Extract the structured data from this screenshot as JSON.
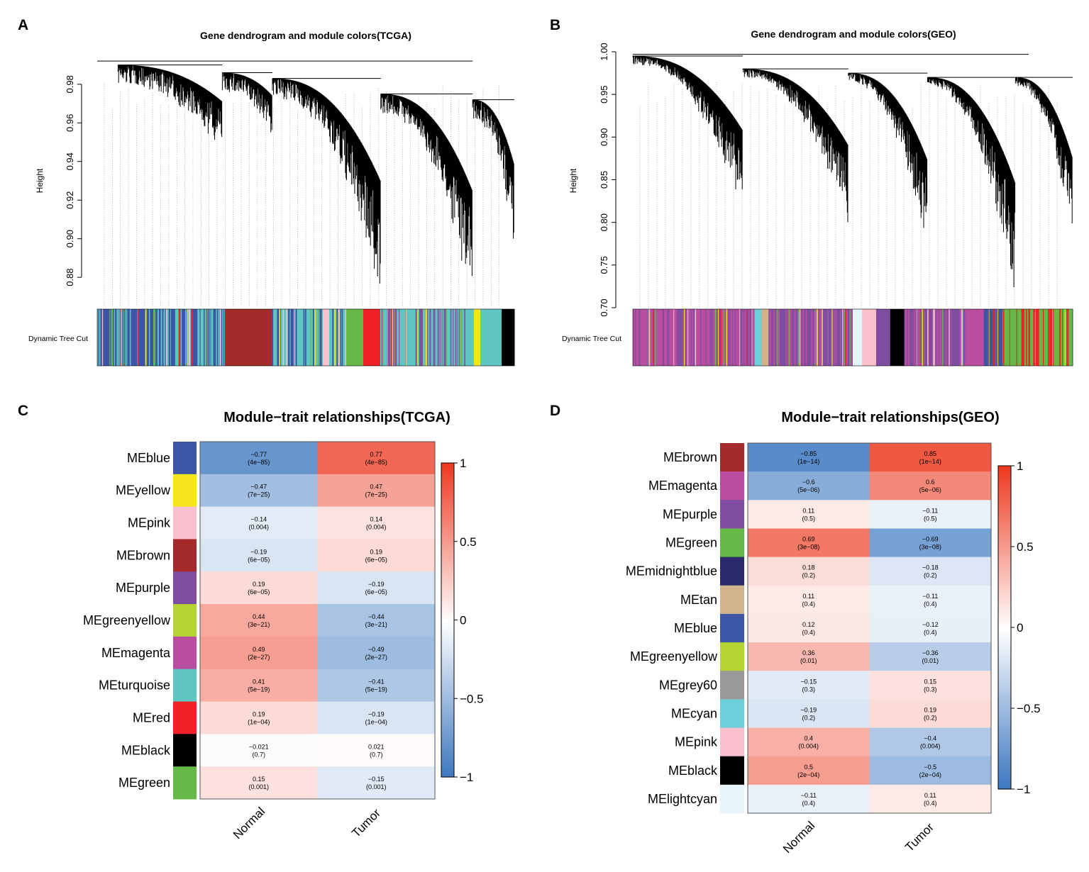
{
  "colors": {
    "blue": "#3c55a5",
    "yellow": "#f5e51c",
    "pink": "#f8c0cc",
    "brown": "#a52a2a",
    "purple": "#7f4ea0",
    "greenyellow": "#b5d333",
    "magenta": "#b94ea0",
    "turquoise": "#5fc6c2",
    "red": "#ee2227",
    "black": "#000000",
    "green": "#67b947",
    "midnightblue": "#2a2a6a",
    "tan": "#d2b48c",
    "grey60": "#999999",
    "cyan": "#6dcfdb",
    "lightcyan": "#e6f5f8",
    "neg": "#3a76c0",
    "pos": "#ee3a20"
  },
  "chart_data": [
    {
      "panel": "A",
      "type": "dendrogram",
      "title": "Gene dendrogram and module colors(TCGA)",
      "ylabel": "Height",
      "ylim": [
        0.865,
        0.995
      ],
      "yticks": [
        "0.88",
        "0.90",
        "0.92",
        "0.94",
        "0.96",
        "0.98"
      ],
      "ytick_values": [
        0.88,
        0.9,
        0.92,
        0.94,
        0.96,
        0.98
      ],
      "colorbar_label": "Dynamic Tree Cut",
      "colorbar_blocks": [
        [
          "blue",
          30,
          "turquoise"
        ],
        [
          "brown",
          11,
          null
        ],
        [
          "turquoise",
          12,
          "blue"
        ],
        [
          "pink",
          1.5,
          null
        ],
        [
          "turquoise",
          4,
          "blue"
        ],
        [
          "green",
          4,
          null
        ],
        [
          "red",
          4,
          null
        ],
        [
          "turquoise",
          20,
          "purple"
        ],
        [
          "turquoise",
          2,
          null
        ],
        [
          "yellow",
          1.5,
          null
        ],
        [
          "turquoise",
          5,
          null
        ],
        [
          "black",
          3,
          null
        ]
      ]
    },
    {
      "panel": "B",
      "type": "dendrogram",
      "title": "Gene dendrogram and module colors(GEO)",
      "ylabel": "Height",
      "ylim": [
        0.7,
        1.0
      ],
      "yticks": [
        "0.70",
        "0.75",
        "0.80",
        "0.85",
        "0.90",
        "0.95",
        "1.00"
      ],
      "ytick_values": [
        0.7,
        0.75,
        0.8,
        0.85,
        0.9,
        0.95,
        1.0
      ],
      "colorbar_label": "Dynamic Tree Cut",
      "colorbar_blocks": [
        [
          "magenta",
          26,
          "purple"
        ],
        [
          "cyan",
          1.5,
          null
        ],
        [
          "tan",
          1.5,
          null
        ],
        [
          "purple",
          18,
          "magenta"
        ],
        [
          "lightcyan",
          2,
          null
        ],
        [
          "pink",
          3,
          null
        ],
        [
          "purple",
          3,
          null
        ],
        [
          "black",
          3,
          null
        ],
        [
          "purple",
          13,
          "magenta"
        ],
        [
          "magenta",
          4,
          null
        ],
        [
          "blue",
          4,
          "purple"
        ],
        [
          "green",
          12,
          "red"
        ],
        [
          "green",
          3,
          "red"
        ]
      ]
    },
    {
      "panel": "C",
      "type": "heatmap",
      "title": "Module−trait relationships(TCGA)",
      "rows": [
        "MEblue",
        "MEyellow",
        "MEpink",
        "MEbrown",
        "MEpurple",
        "MEgreenyellow",
        "MEmagenta",
        "MEturquoise",
        "MEred",
        "MEblack",
        "MEgreen"
      ],
      "row_colors": [
        "blue",
        "yellow",
        "pink",
        "brown",
        "purple",
        "greenyellow",
        "magenta",
        "turquoise",
        "red",
        "black",
        "green"
      ],
      "columns": [
        "Normal",
        "Tumor"
      ],
      "values": [
        [
          -0.77,
          0.77
        ],
        [
          -0.47,
          0.47
        ],
        [
          -0.14,
          0.14
        ],
        [
          -0.19,
          0.19
        ],
        [
          0.19,
          -0.19
        ],
        [
          0.44,
          -0.44
        ],
        [
          0.49,
          -0.49
        ],
        [
          0.41,
          -0.41
        ],
        [
          0.19,
          -0.19
        ],
        [
          -0.021,
          0.021
        ],
        [
          0.15,
          -0.15
        ]
      ],
      "labels": [
        [
          "−0.77",
          "0.77"
        ],
        [
          "−0.47",
          "0.47"
        ],
        [
          "−0.14",
          "0.14"
        ],
        [
          "−0.19",
          "0.19"
        ],
        [
          "0.19",
          "−0.19"
        ],
        [
          "0.44",
          "−0.44"
        ],
        [
          "0.49",
          "−0.49"
        ],
        [
          "0.41",
          "−0.41"
        ],
        [
          "0.19",
          "−0.19"
        ],
        [
          "−0.021",
          "0.021"
        ],
        [
          "0.15",
          "−0.15"
        ]
      ],
      "pvalues": [
        "(4e−85)",
        "(7e−25)",
        "(0.004)",
        "(6e−05)",
        "(6e−05)",
        "(3e−21)",
        "(2e−27)",
        "(5e−19)",
        "(1e−04)",
        "(0.7)",
        "(0.001)"
      ],
      "legend_ticks": [
        "1",
        "0.5",
        "0",
        "−0.5",
        "−1"
      ],
      "zlim": [
        -1,
        1
      ]
    },
    {
      "panel": "D",
      "type": "heatmap",
      "title": "Module−trait relationships(GEO)",
      "rows": [
        "MEbrown",
        "MEmagenta",
        "MEpurple",
        "MEgreen",
        "MEmidnightblue",
        "MEtan",
        "MEblue",
        "MEgreenyellow",
        "MEgrey60",
        "MEcyan",
        "MEpink",
        "MEblack",
        "MElightcyan"
      ],
      "row_colors": [
        "brown",
        "magenta",
        "purple",
        "green",
        "midnightblue",
        "tan",
        "blue",
        "greenyellow",
        "grey60",
        "cyan",
        "pink",
        "black",
        "lightcyan"
      ],
      "columns": [
        "Normal",
        "Tumor"
      ],
      "values": [
        [
          -0.85,
          0.85
        ],
        [
          -0.6,
          0.6
        ],
        [
          0.11,
          -0.11
        ],
        [
          0.69,
          -0.69
        ],
        [
          0.18,
          -0.18
        ],
        [
          0.11,
          -0.11
        ],
        [
          0.12,
          -0.12
        ],
        [
          0.36,
          -0.36
        ],
        [
          -0.15,
          0.15
        ],
        [
          -0.19,
          0.19
        ],
        [
          0.4,
          -0.4
        ],
        [
          0.5,
          -0.5
        ],
        [
          -0.11,
          0.11
        ]
      ],
      "labels": [
        [
          "−0.85",
          "0.85"
        ],
        [
          "−0.6",
          "0.6"
        ],
        [
          "0.11",
          "−0.11"
        ],
        [
          "0.69",
          "−0.69"
        ],
        [
          "0.18",
          "−0.18"
        ],
        [
          "0.11",
          "−0.11"
        ],
        [
          "0.12",
          "−0.12"
        ],
        [
          "0.36",
          "−0.36"
        ],
        [
          "−0.15",
          "0.15"
        ],
        [
          "−0.19",
          "0.19"
        ],
        [
          "0.4",
          "−0.4"
        ],
        [
          "0.5",
          "−0.5"
        ],
        [
          "−0.11",
          "0.11"
        ]
      ],
      "pvalues": [
        [
          "(1e−14)",
          "(1e−14)"
        ],
        [
          "(5e−06)",
          "(5e−06)"
        ],
        [
          "(0.5)",
          "(0.5)"
        ],
        [
          "(3e−08)",
          "(3e−08)"
        ],
        [
          "(0.2)",
          "(0.2)"
        ],
        [
          "(0.4)",
          "(0.4)"
        ],
        [
          "(0.4)",
          "(0.4)"
        ],
        [
          "(0.01)",
          "(0.01)"
        ],
        [
          "(0.3)",
          "(0.3)"
        ],
        [
          "(0.2)",
          "(0.2)"
        ],
        [
          "(0.004)",
          "(0.004)"
        ],
        [
          "(2e−04)",
          "(2e−04)"
        ],
        [
          "(0.4)",
          "(0.4)"
        ]
      ],
      "legend_ticks": [
        "1",
        "0.5",
        "0",
        "−0.5",
        "−1"
      ],
      "zlim": [
        -1,
        1
      ]
    }
  ]
}
